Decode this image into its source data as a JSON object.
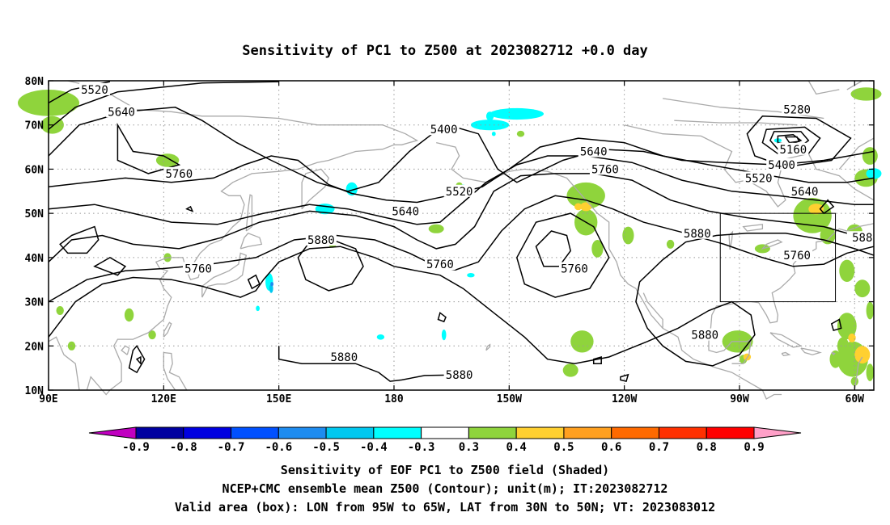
{
  "chart_data": {
    "type": "contour_map",
    "title": "Sensitivity of PC1 to Z500 at 2023082712 +0.0 day",
    "map": {
      "lon_range": [
        90,
        305
      ],
      "lat_range": [
        10,
        80
      ],
      "lon_tick_labels": [
        "90E",
        "120E",
        "150E",
        "180",
        "150W",
        "120W",
        "90W",
        "60W"
      ],
      "lon_tick_values": [
        90,
        120,
        150,
        180,
        210,
        240,
        270,
        300
      ],
      "lat_tick_labels": [
        "10N",
        "20N",
        "30N",
        "40N",
        "50N",
        "60N",
        "70N",
        "80N"
      ],
      "lat_tick_values": [
        10,
        20,
        30,
        40,
        50,
        60,
        70,
        80
      ],
      "grid": "dotted",
      "valid_box": {
        "lon": [
          265,
          295
        ],
        "lat": [
          30,
          50
        ]
      }
    },
    "contour_labels": [
      {
        "text": "5520",
        "lon": 102,
        "lat": 78
      },
      {
        "text": "5640",
        "lon": 109,
        "lat": 73
      },
      {
        "text": "5760",
        "lon": 124,
        "lat": 59
      },
      {
        "text": "5760",
        "lon": 129,
        "lat": 37.5
      },
      {
        "text": "5880",
        "lon": 161,
        "lat": 44
      },
      {
        "text": "5880",
        "lon": 167,
        "lat": 17.5
      },
      {
        "text": "5880",
        "lon": 197,
        "lat": 13.5
      },
      {
        "text": "5400",
        "lon": 193,
        "lat": 69
      },
      {
        "text": "5520",
        "lon": 197,
        "lat": 55
      },
      {
        "text": "5640",
        "lon": 183,
        "lat": 50.5
      },
      {
        "text": "5760",
        "lon": 192,
        "lat": 38.5
      },
      {
        "text": "5760",
        "lon": 227,
        "lat": 37.5
      },
      {
        "text": "5640",
        "lon": 232,
        "lat": 64
      },
      {
        "text": "5760",
        "lon": 235,
        "lat": 60
      },
      {
        "text": "5880",
        "lon": 259,
        "lat": 45.5
      },
      {
        "text": "5880",
        "lon": 261,
        "lat": 22.5
      },
      {
        "text": "5280",
        "lon": 285,
        "lat": 73.5
      },
      {
        "text": "5160",
        "lon": 284,
        "lat": 64.5
      },
      {
        "text": "5400",
        "lon": 281,
        "lat": 61
      },
      {
        "text": "5520",
        "lon": 275,
        "lat": 58
      },
      {
        "text": "5640",
        "lon": 287,
        "lat": 55
      },
      {
        "text": "5760",
        "lon": 285,
        "lat": 40.5
      },
      {
        "text": "588",
        "lon": 302,
        "lat": 44.5
      }
    ],
    "colorbar": {
      "labels": [
        "-0.9",
        "-0.8",
        "-0.7",
        "-0.6",
        "-0.5",
        "-0.4",
        "-0.3",
        "0.3",
        "0.4",
        "0.5",
        "0.6",
        "0.7",
        "0.8",
        "0.9"
      ],
      "colors": [
        "#c000c0",
        "#0000a0",
        "#0000e0",
        "#0050ff",
        "#1e8cf0",
        "#00c8f0",
        "#00ffff",
        "#ffffff",
        "#8fd43c",
        "#ffd030",
        "#ffa020",
        "#ff6a00",
        "#ff3000",
        "#ff0000",
        "#ffa0c8"
      ]
    },
    "footer": [
      "Sensitivity of EOF PC1 to Z500 field (Shaded)",
      "NCEP+CMC ensemble mean Z500 (Contour); unit(m); IT:2023082712",
      "Valid area (box): LON from 95W to 65W, LAT from 30N to 50N; VT: 2023083012"
    ]
  }
}
